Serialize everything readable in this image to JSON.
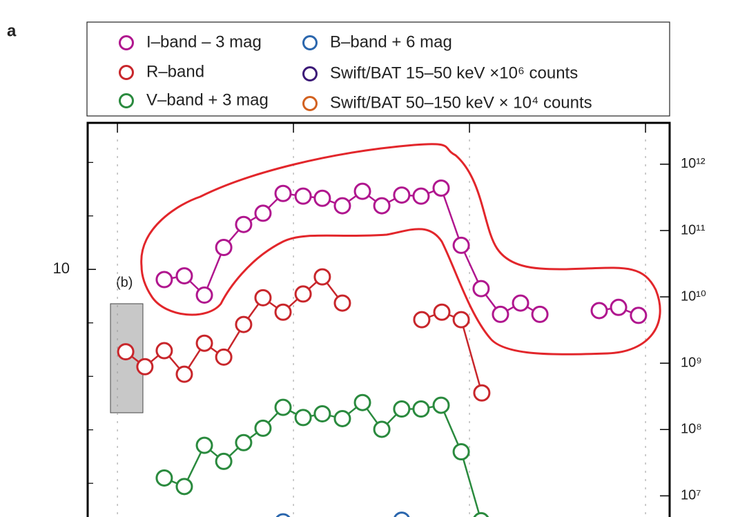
{
  "chart_data": {
    "type": "line",
    "panel_label": "a",
    "annotation": "(b)",
    "xlim": [
      0.831,
      4.137
    ],
    "xticks": [
      1,
      2,
      3,
      4
    ],
    "ylim": [
      7.26,
      14.63
    ],
    "y_inverted": true,
    "yticks": [
      10
    ],
    "y_minor_ticks": [
      8,
      9,
      11,
      12,
      13,
      14
    ],
    "y2lim": [
      4800000,
      4200000000000
    ],
    "y2_log": true,
    "y2ticks": [
      {
        "value": 10000000,
        "label": "10⁷"
      },
      {
        "value": 100000000,
        "label": "10⁸"
      },
      {
        "value": 1000000000,
        "label": "10⁹"
      },
      {
        "value": 10000000000,
        "label": "10¹⁰"
      },
      {
        "value": 100000000000,
        "label": "10¹¹"
      },
      {
        "value": 1000000000000,
        "label": "10¹²"
      }
    ],
    "grid": true,
    "legend": "top",
    "series": [
      {
        "name": "I–band – 3 mag",
        "color": "#b0168e",
        "x": [
          1.266,
          1.38,
          1.494,
          1.604,
          1.717,
          1.827,
          1.941,
          2.055,
          2.164,
          2.278,
          2.392,
          2.502,
          2.615,
          2.725,
          2.839,
          2.953,
          3.066,
          3.176,
          3.29,
          3.4,
          null,
          3.737,
          3.847,
          3.96
        ],
        "values": [
          10.19,
          10.12,
          10.48,
          9.59,
          9.16,
          8.95,
          8.58,
          8.63,
          8.67,
          8.81,
          8.54,
          8.81,
          8.61,
          8.63,
          8.48,
          9.55,
          10.36,
          10.84,
          10.63,
          10.84,
          null,
          10.77,
          10.71,
          10.86
        ]
      },
      {
        "name": "R–band",
        "color": "#c8262b",
        "x": [
          1.047,
          1.156,
          1.266,
          1.38,
          1.494,
          1.604,
          1.717,
          1.827,
          1.941,
          2.055,
          2.164,
          2.278,
          null,
          2.729,
          2.843,
          2.953,
          3.07
        ],
        "values": [
          11.54,
          11.82,
          11.52,
          11.96,
          11.38,
          11.64,
          11.03,
          10.53,
          10.8,
          10.46,
          10.14,
          10.63,
          null,
          10.94,
          10.8,
          10.94,
          12.31
        ]
      },
      {
        "name": "V–band + 3 mag",
        "color": "#2a8a3e",
        "x": [
          1.266,
          1.38,
          1.494,
          1.604,
          1.717,
          1.827,
          1.941,
          2.055,
          2.164,
          2.278,
          2.392,
          2.502,
          2.615,
          2.725,
          2.839,
          2.953,
          3.066
        ],
        "values": [
          13.9,
          14.06,
          13.29,
          13.59,
          13.24,
          12.97,
          12.58,
          12.77,
          12.7,
          12.79,
          12.49,
          12.99,
          12.61,
          12.61,
          12.54,
          13.41,
          14.7
        ]
      },
      {
        "name": "B–band + 6 mag",
        "color": "#2a66ad",
        "x": [
          1.941,
          2.615
        ],
        "values": [
          14.72,
          14.69
        ]
      },
      {
        "name": "Swift/BAT 15–50 keV  ×10⁶ counts",
        "color": "#3b1877",
        "axis": "y2",
        "x": [],
        "values": []
      },
      {
        "name": "Swift/BAT 50–150 keV × 10⁴ counts",
        "color": "#d2611f",
        "axis": "y2",
        "x": [],
        "values": []
      }
    ]
  }
}
